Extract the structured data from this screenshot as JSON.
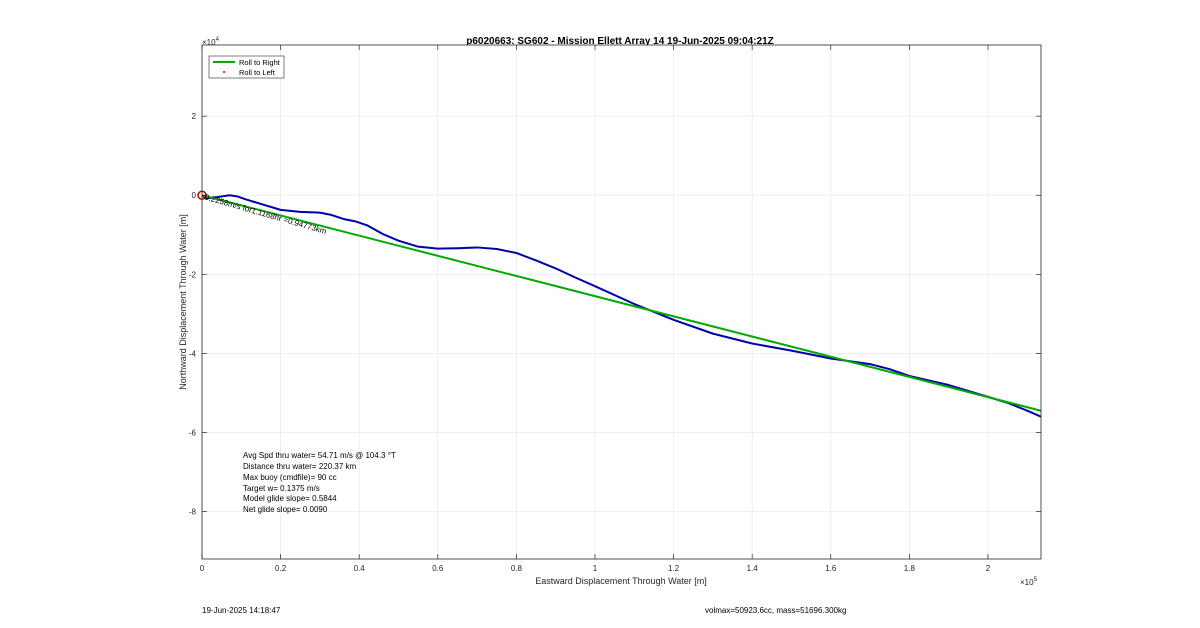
{
  "chart_data": {
    "type": "line",
    "title": "p6020663: SG602 - Mission Ellett Array 14 19-Jun-2025 09:04:21Z",
    "xlabel": "Eastward Displacement Through Water [m]",
    "ylabel": "Northward Displacement Through Water [m]",
    "x_exponent_label": "×10",
    "x_exponent_power": "5",
    "y_exponent_label": "×10",
    "y_exponent_power": "4",
    "xlim": [
      0,
      213500
    ],
    "ylim": [
      -92000,
      38000
    ],
    "x_ticks": [
      0,
      20000,
      40000,
      60000,
      80000,
      100000,
      120000,
      140000,
      160000,
      180000,
      200000
    ],
    "x_tick_labels": [
      "0",
      "0.2",
      "0.4",
      "0.6",
      "0.8",
      "1",
      "1.2",
      "1.4",
      "1.6",
      "1.8",
      "2"
    ],
    "y_ticks": [
      -80000,
      -60000,
      -40000,
      -20000,
      0,
      20000
    ],
    "y_tick_labels": [
      "-8",
      "-6",
      "-4",
      "-2",
      "0",
      "2"
    ],
    "grid": true,
    "legend_position": "top-left",
    "legend": [
      {
        "label": "Roll to Right",
        "color": "#00aa00",
        "marker": "line"
      },
      {
        "label": "Roll to Left",
        "color": "#dd0000",
        "marker": "dot"
      }
    ],
    "series": [
      {
        "name": "Roll to Right",
        "color": "#00aa00",
        "x": [
          0,
          213500
        ],
        "y": [
          0,
          -54500
        ]
      },
      {
        "color": "#0000aa",
        "x": [
          0,
          1000,
          3000,
          5000,
          7000,
          9000,
          11000,
          15000,
          20000,
          25000,
          30000,
          33000,
          36000,
          39000,
          42000,
          46000,
          50000,
          55000,
          60000,
          65000,
          70000,
          75000,
          80000,
          85000,
          90000,
          95000,
          100000,
          110000,
          120000,
          130000,
          140000,
          150000,
          160000,
          170000,
          175000,
          180000,
          190000,
          200000,
          205000,
          210000,
          213500
        ],
        "y": [
          0,
          -800,
          -600,
          -300,
          0,
          -300,
          -1000,
          -2200,
          -3700,
          -4200,
          -4400,
          -5000,
          -6000,
          -6600,
          -7600,
          -9800,
          -11500,
          -13000,
          -13500,
          -13400,
          -13200,
          -13600,
          -14600,
          -16500,
          -18500,
          -20800,
          -23000,
          -27500,
          -31500,
          -35000,
          -37500,
          -39300,
          -41300,
          -42700,
          -44000,
          -45700,
          -48000,
          -51000,
          -52500,
          -54500,
          -56000
        ]
      }
    ],
    "start_marker": {
      "x": 0,
      "y": 0,
      "color": "#cc0000"
    },
    "annotation": {
      "x": 0,
      "y": 0,
      "text": "0.2258m/s for1.1168hr =0.94773km",
      "rotation": 16
    },
    "stats": [
      "Avg Spd thru water= 54.71 m/s @ 104.3 °T",
      "Distance thru water= 220.37 km",
      "Max buoy (cmdfile)= 90 cc",
      "Target w= 0.1375 m/s",
      "Model glide slope= 0.5844",
      "Net glide slope= 0.0090"
    ]
  },
  "footer": {
    "left": "19-Jun-2025 14:18:47",
    "right": "volmax=50923.6cc, mass=51696.300kg"
  }
}
